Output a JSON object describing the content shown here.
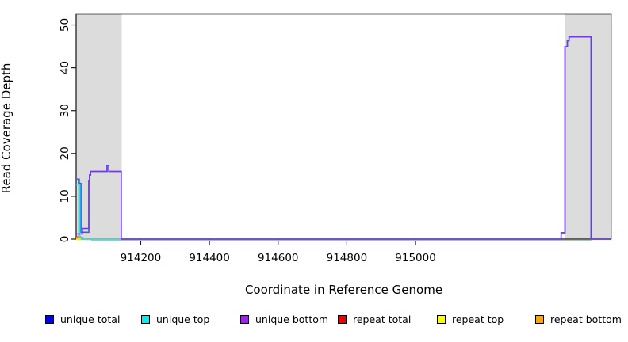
{
  "figure": {
    "background": "#ffffff"
  },
  "chart_data": {
    "type": "line",
    "subtype": "step-coverage",
    "title": "",
    "xlabel": "Coordinate in Reference Genome",
    "ylabel": "Read Coverage Depth",
    "xlim": [
      914012,
      915570
    ],
    "ylim": [
      0,
      52.5
    ],
    "x_ticks": [
      914200,
      914400,
      914600,
      914800,
      915000
    ],
    "y_ticks": [
      0,
      10,
      20,
      30,
      40,
      50
    ],
    "grid": false,
    "legend_position": "bottom",
    "shaded_regions": [
      {
        "name": "repeat-region-left",
        "x0": 914012,
        "x1": 914143,
        "color": "#dcdcdc",
        "edge": "#bdbdbd"
      },
      {
        "name": "repeat-region-right",
        "x0": 915435,
        "x1": 915570,
        "color": "#dcdcdc",
        "edge": "#bdbdbd"
      }
    ],
    "series": [
      {
        "name": "repeat total",
        "color": "#ee0000",
        "points": [
          [
            914012,
            0.5
          ],
          [
            914024,
            0.5
          ],
          [
            914024,
            0
          ],
          [
            914034,
            0
          ]
        ]
      },
      {
        "name": "repeat top",
        "color": "#ffff00",
        "points": [
          [
            914012,
            0
          ],
          [
            914030,
            0
          ]
        ]
      },
      {
        "name": "repeat bottom",
        "color": "#ffa500",
        "points": [
          [
            914012,
            0.35
          ],
          [
            914028,
            0.35
          ],
          [
            914028,
            0
          ],
          [
            914040,
            0
          ]
        ]
      },
      {
        "name": "unique top",
        "color": "#35dede",
        "points": [
          [
            914012,
            12.8
          ],
          [
            914022,
            12.8
          ],
          [
            914022,
            0.4
          ],
          [
            914032,
            0.4
          ],
          [
            914032,
            0
          ],
          [
            914143,
            0
          ]
        ]
      },
      {
        "name": "unique total",
        "color": "#3a5fef",
        "points": [
          [
            914012,
            14
          ],
          [
            914021,
            14
          ],
          [
            914021,
            13
          ],
          [
            914026,
            13
          ],
          [
            914026,
            1.6
          ],
          [
            914049,
            1.6
          ],
          [
            914049,
            13.5
          ],
          [
            914051,
            13.5
          ],
          [
            914051,
            15
          ],
          [
            914054,
            15
          ],
          [
            914054,
            15.8
          ],
          [
            914102,
            15.8
          ],
          [
            914102,
            17.2
          ],
          [
            914107,
            17.2
          ],
          [
            914107,
            15.8
          ],
          [
            914143,
            15.8
          ],
          [
            914143,
            0
          ],
          [
            915424,
            0
          ],
          [
            915424,
            1.5
          ],
          [
            915435,
            1.5
          ],
          [
            915435,
            44.9
          ],
          [
            915442,
            44.9
          ],
          [
            915442,
            46.3
          ],
          [
            915447,
            46.3
          ],
          [
            915447,
            47.2
          ],
          [
            915511,
            47.2
          ],
          [
            915511,
            0
          ],
          [
            915570,
            0
          ]
        ]
      },
      {
        "name": "unique bottom",
        "color": "#6f3be6",
        "points": [
          [
            914012,
            1.2
          ],
          [
            914030,
            1.2
          ],
          [
            914030,
            2.5
          ],
          [
            914049,
            2.5
          ],
          [
            914049,
            13.5
          ],
          [
            914051,
            13.5
          ],
          [
            914051,
            15
          ],
          [
            914054,
            15
          ],
          [
            914054,
            15.8
          ],
          [
            914102,
            15.8
          ],
          [
            914102,
            17.2
          ],
          [
            914107,
            17.2
          ],
          [
            914107,
            15.8
          ],
          [
            914143,
            15.8
          ],
          [
            914143,
            0
          ],
          [
            915424,
            0
          ],
          [
            915424,
            1.5
          ],
          [
            915435,
            1.5
          ],
          [
            915435,
            44.9
          ],
          [
            915442,
            44.9
          ],
          [
            915442,
            46.3
          ],
          [
            915447,
            46.3
          ],
          [
            915447,
            47.2
          ],
          [
            915511,
            47.2
          ],
          [
            915511,
            0
          ],
          [
            915570,
            0
          ]
        ]
      }
    ],
    "baseline_annotation": {
      "name": "uncovered-span-line",
      "color": "#90d890",
      "x0": 914056,
      "x1": 915512,
      "y": 0
    }
  },
  "axes": {
    "xlabel": "Coordinate in Reference Genome",
    "ylabel": "Read Coverage Depth"
  },
  "legend": {
    "items": [
      {
        "label": "unique total",
        "color": "#0000ee"
      },
      {
        "label": "unique top",
        "color": "#00eeee"
      },
      {
        "label": "unique bottom",
        "color": "#a020f0"
      },
      {
        "label": "repeat total",
        "color": "#ee0000"
      },
      {
        "label": "repeat top",
        "color": "#ffff00"
      },
      {
        "label": "repeat bottom",
        "color": "#ffa500"
      }
    ]
  }
}
